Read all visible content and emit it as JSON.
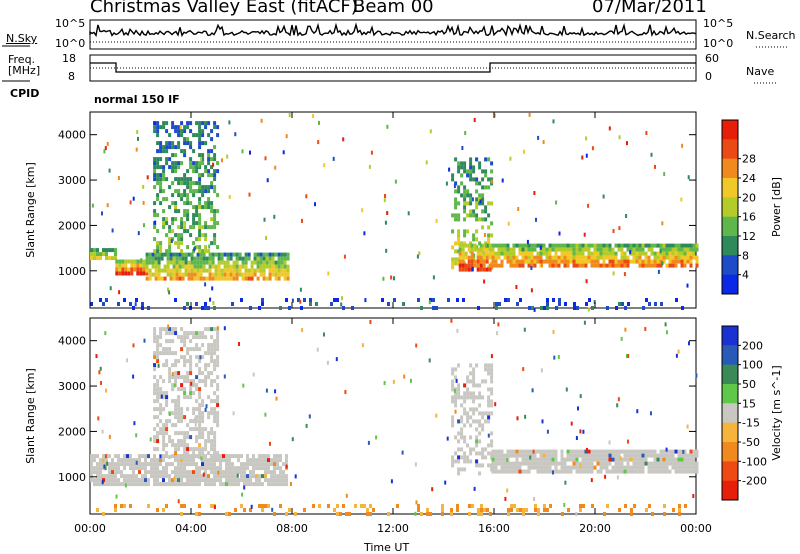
{
  "header": {
    "station": "Christmas Valley East (fitACF)",
    "beam": "Beam 00",
    "date": "07/Mar/2011"
  },
  "status_panels": {
    "nsky_label": "N.Sky",
    "nsky_ticks": [
      "10^5",
      "10^0"
    ],
    "nsearch_label": "N.Search",
    "nsearch_ticks": [
      "10^5",
      "10^0"
    ],
    "freq_label": [
      "Freq.",
      "[MHz]"
    ],
    "freq_ticks": [
      "18",
      "8"
    ],
    "nave_label": "Nave",
    "nave_ticks": [
      "60",
      "0"
    ],
    "cpid_label": "CPID",
    "cpid_text": "normal 150 IF"
  },
  "colors": {
    "power": [
      "#0b28e6",
      "#1e4cc8",
      "#2e8a5a",
      "#5fb64b",
      "#b4cc2a",
      "#f0c828",
      "#f08a1e",
      "#ec4a14",
      "#e61e0a"
    ],
    "velocity": [
      "#e61e0a",
      "#f04a14",
      "#f08a1e",
      "#f5b43c",
      "#c9c7c1",
      "#5fc84a",
      "#3a8a58",
      "#2a5ab8",
      "#1a32d2"
    ],
    "ground_scatter": "#c9c7c1"
  },
  "chart_data": [
    {
      "type": "heatmap",
      "name": "Power",
      "ylabel": "Slant Range [km]",
      "y_ticks": [
        1000,
        2000,
        3000,
        4000
      ],
      "ylim": [
        180,
        4500
      ],
      "x_ticks": [
        "00:00",
        "04:00",
        "08:00",
        "12:00",
        "16:00",
        "20:00",
        "00:00"
      ],
      "xlim_hours": [
        0,
        24
      ],
      "colorbar_label": "Power [dB]",
      "colorbar_ticks": [
        4,
        8,
        12,
        16,
        20,
        24,
        28
      ],
      "features": [
        {
          "from_hour": 0.0,
          "to_hour": 1.0,
          "range_km": [
            1250,
            1500
          ],
          "level": 5,
          "density": 0.85
        },
        {
          "from_hour": 1.0,
          "to_hour": 2.2,
          "range_km": [
            900,
            1250
          ],
          "level": 8,
          "density": 0.9
        },
        {
          "from_hour": 2.2,
          "to_hour": 7.8,
          "range_km": [
            850,
            1400
          ],
          "level": 5,
          "density": 0.85
        },
        {
          "from_hour": 2.5,
          "to_hour": 5.0,
          "range_km": [
            1400,
            4300
          ],
          "level": 3,
          "density": 0.45
        },
        {
          "from_hour": 14.3,
          "to_hour": 15.9,
          "range_km": [
            1100,
            3500
          ],
          "level": 4,
          "density": 0.4
        },
        {
          "from_hour": 14.6,
          "to_hour": 15.9,
          "range_km": [
            1000,
            1600
          ],
          "level": 7,
          "density": 0.85
        },
        {
          "from_hour": 15.9,
          "to_hour": 24.0,
          "range_km": [
            1100,
            1600
          ],
          "level": 6,
          "density": 0.9
        },
        {
          "from_hour": 0.0,
          "to_hour": 24.0,
          "range_km": [
            200,
            400
          ],
          "level": 1,
          "density": 0.15
        }
      ]
    },
    {
      "type": "heatmap",
      "name": "Velocity",
      "ylabel": "Slant Range [km]",
      "y_ticks": [
        1000,
        2000,
        3000,
        4000
      ],
      "ylim": [
        180,
        4500
      ],
      "x_ticks": [
        "00:00",
        "04:00",
        "08:00",
        "12:00",
        "16:00",
        "20:00",
        "00:00"
      ],
      "xlim_hours": [
        0,
        24
      ],
      "xlabel": "Time UT",
      "colorbar_label": "Velocity [m s^-1]",
      "colorbar_ticks": [
        200,
        100,
        50,
        15,
        -15,
        -50,
        -100,
        -200
      ],
      "features": [
        {
          "from_hour": 0.0,
          "to_hour": 7.8,
          "range_km": [
            850,
            1500
          ],
          "level": "ground",
          "density": 0.85
        },
        {
          "from_hour": 2.5,
          "to_hour": 5.0,
          "range_km": [
            1400,
            4300
          ],
          "level": "ground",
          "density": 0.5
        },
        {
          "from_hour": 14.3,
          "to_hour": 15.9,
          "range_km": [
            1100,
            3500
          ],
          "level": "ground",
          "density": 0.4
        },
        {
          "from_hour": 15.9,
          "to_hour": 24.0,
          "range_km": [
            1100,
            1600
          ],
          "level": "ground",
          "density": 0.9
        },
        {
          "from_hour": 0.0,
          "to_hour": 24.0,
          "range_km": [
            200,
            400
          ],
          "level": "low-neg",
          "density": 0.2
        }
      ]
    }
  ]
}
